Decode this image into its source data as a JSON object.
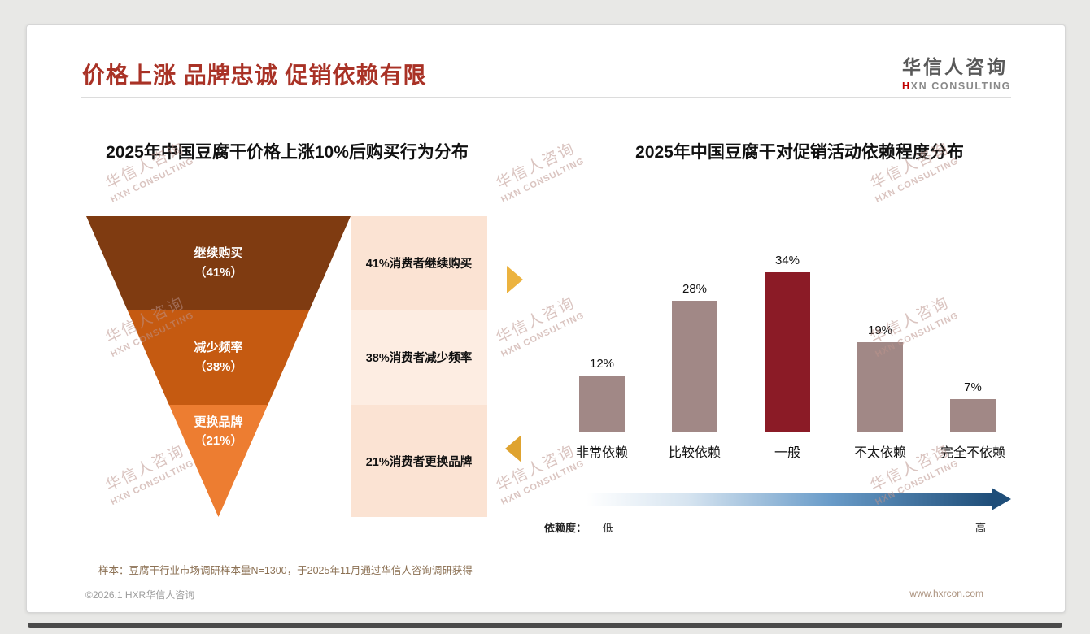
{
  "slide": {
    "title": "价格上涨 品牌忠诚 促销依赖有限",
    "sample_note": "样本：豆腐干行业市场调研样本量N=1300，于2025年11月通过华信人咨询调研获得",
    "footer": {
      "left": "©2026.1 HXR华信人咨询",
      "right": "www.hxrcon.com"
    }
  },
  "logo": {
    "cn": "华信人咨询",
    "en": "HXN CONSULTING"
  },
  "watermark": {
    "line1": "华信人咨询",
    "line2": "HXN CONSULTING"
  },
  "colors": {
    "title_red": "#A93226",
    "funnel_stage1": "#7F3B11",
    "funnel_stage2": "#C55A11",
    "funnel_stage3": "#ED7D31",
    "annotation_bg": "#FBE3D3",
    "bar_default": "#A18886",
    "bar_highlight": "#8B1B26",
    "connector_gold": "#ECB33F",
    "gradient_dark_blue": "#1F4E79"
  },
  "chart_data": [
    {
      "type": "funnel",
      "title": "2025年中国豆腐干价格上涨10%后购买行为分布",
      "stages": [
        {
          "label": "继续购买",
          "value": 41,
          "value_label": "（41%）",
          "annotation": "41%消费者继续购买"
        },
        {
          "label": "减少频率",
          "value": 38,
          "value_label": "（38%）",
          "annotation": "38%消费者减少频率"
        },
        {
          "label": "更换品牌",
          "value": 21,
          "value_label": "（21%）",
          "annotation": "21%消费者更换品牌"
        }
      ]
    },
    {
      "type": "bar",
      "title": "2025年中国豆腐干对促销活动依赖程度分布",
      "categories": [
        "非常依赖",
        "比较依赖",
        "一般",
        "不太依赖",
        "完全不依赖"
      ],
      "values": [
        12,
        28,
        34,
        19,
        7
      ],
      "value_labels": [
        "12%",
        "28%",
        "34%",
        "19%",
        "7%"
      ],
      "highlight_index": 2,
      "ylim": [
        0,
        40
      ],
      "grid": "off",
      "legend": "none",
      "axis": {
        "label": "依赖度：",
        "low": "低",
        "high": "高"
      }
    }
  ]
}
